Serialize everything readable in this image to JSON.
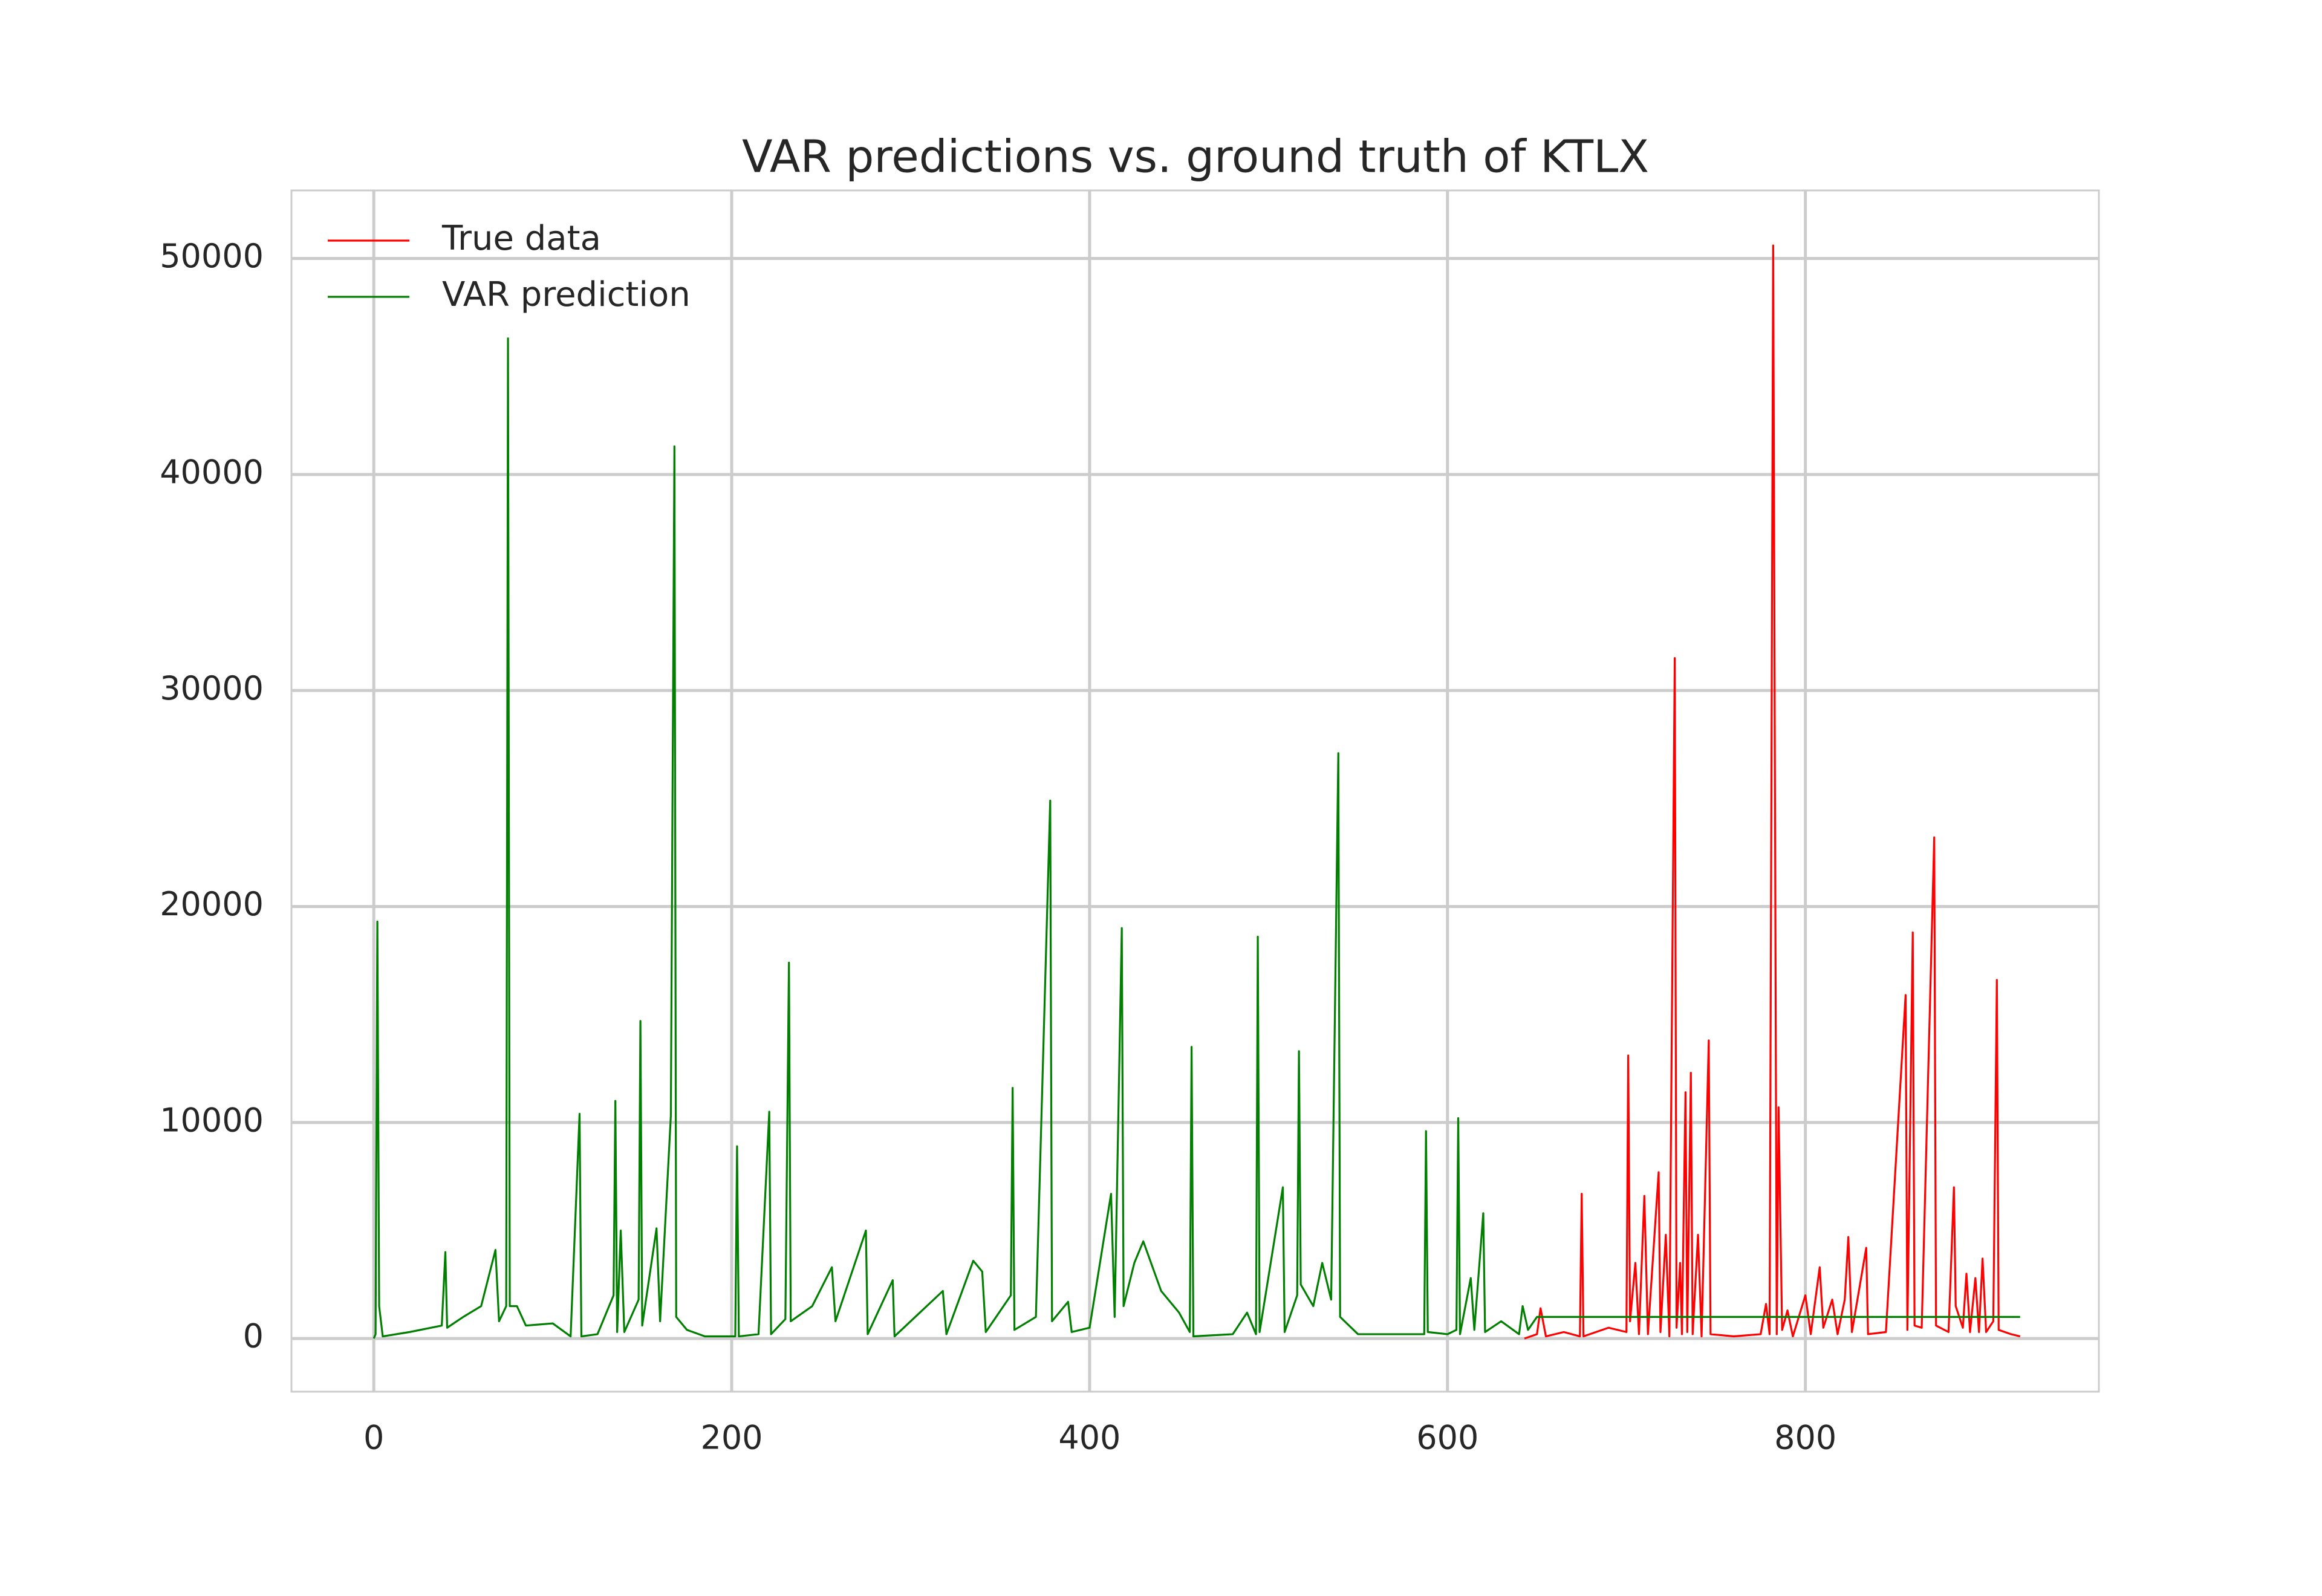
{
  "chart_data": {
    "type": "line",
    "title": "VAR predictions vs. ground truth of KTLX",
    "xlim": [
      -46,
      964
    ],
    "ylim": [
      -2460,
      53150
    ],
    "xticks": [
      0,
      200,
      400,
      600,
      800
    ],
    "yticks": [
      0,
      10000,
      20000,
      30000,
      40000,
      50000
    ],
    "grid": true,
    "legend": "upper left",
    "series": [
      {
        "name": "True data",
        "color": "#ff0000",
        "x": [
          643,
          650,
          652,
          655,
          665,
          674,
          675,
          676,
          690,
          700,
          701,
          702,
          705,
          707,
          710,
          712,
          718,
          719,
          722,
          724,
          727,
          728,
          730,
          731,
          733,
          734,
          736,
          737,
          740,
          742,
          746,
          747,
          760,
          775,
          778,
          780,
          782,
          784,
          785,
          787,
          790,
          793,
          800,
          803,
          808,
          810,
          815,
          818,
          822,
          824,
          826,
          834,
          835,
          845,
          856,
          857,
          860,
          861,
          865,
          872,
          873,
          880,
          883,
          884,
          888,
          890,
          892,
          895,
          897,
          899,
          901,
          905,
          907,
          908,
          915,
          920
        ],
        "values": [
          0,
          200,
          1400,
          100,
          300,
          100,
          6700,
          100,
          500,
          300,
          13100,
          800,
          3500,
          200,
          6600,
          200,
          7700,
          300,
          4800,
          100,
          31500,
          500,
          3500,
          200,
          11400,
          300,
          12300,
          200,
          4800,
          100,
          13800,
          200,
          100,
          200,
          1600,
          200,
          50600,
          200,
          10700,
          400,
          1300,
          100,
          2000,
          200,
          3300,
          500,
          1800,
          200,
          1800,
          4700,
          300,
          4200,
          200,
          300,
          15900,
          400,
          18800,
          600,
          500,
          23200,
          600,
          300,
          7000,
          1500,
          500,
          3000,
          300,
          2800,
          300,
          3700,
          300,
          800,
          16600,
          400,
          200,
          100
        ]
      },
      {
        "name": "VAR prediction",
        "color": "#007f00",
        "x": [
          0,
          1,
          2,
          3,
          5,
          20,
          38,
          40,
          41,
          50,
          60,
          68,
          70,
          74,
          75,
          76,
          80,
          85,
          100,
          110,
          115,
          116,
          125,
          134,
          135,
          136,
          138,
          140,
          148,
          149,
          150,
          158,
          160,
          166,
          168,
          169,
          175,
          185,
          202,
          203,
          204,
          215,
          221,
          222,
          230,
          232,
          233,
          245,
          256,
          258,
          275,
          276,
          290,
          291,
          318,
          320,
          335,
          340,
          342,
          356,
          357,
          358,
          370,
          378,
          379,
          388,
          390,
          400,
          412,
          414,
          418,
          419,
          425,
          430,
          440,
          450,
          456,
          457,
          458,
          480,
          488,
          493,
          494,
          495,
          508,
          509,
          516,
          517,
          518,
          525,
          530,
          535,
          539,
          540,
          550,
          587,
          588,
          589,
          600,
          605,
          606,
          607,
          613,
          615,
          620,
          621,
          630,
          640,
          642,
          645,
          650,
          920
        ],
        "values": [
          0,
          200,
          19300,
          1500,
          100,
          300,
          600,
          4000,
          500,
          1000,
          1500,
          4100,
          800,
          1500,
          46300,
          1500,
          1500,
          600,
          700,
          100,
          10400,
          100,
          200,
          2000,
          11000,
          300,
          5000,
          300,
          1800,
          14700,
          600,
          5100,
          800,
          10300,
          41300,
          1000,
          400,
          100,
          100,
          8900,
          100,
          200,
          10500,
          200,
          900,
          17400,
          800,
          1500,
          3300,
          800,
          5000,
          200,
          2700,
          100,
          2200,
          200,
          3600,
          3100,
          300,
          2000,
          11600,
          400,
          1000,
          24900,
          800,
          1700,
          300,
          500,
          6700,
          1000,
          19000,
          1500,
          3500,
          4500,
          2200,
          1200,
          300,
          13500,
          100,
          200,
          1200,
          200,
          18600,
          300,
          7000,
          300,
          2000,
          13300,
          2500,
          1500,
          3500,
          1800,
          27100,
          1000,
          200,
          200,
          9600,
          300,
          200,
          400,
          10200,
          200,
          2800,
          400,
          5800,
          300,
          800,
          200,
          1500,
          400,
          1000,
          1000
        ]
      }
    ]
  }
}
